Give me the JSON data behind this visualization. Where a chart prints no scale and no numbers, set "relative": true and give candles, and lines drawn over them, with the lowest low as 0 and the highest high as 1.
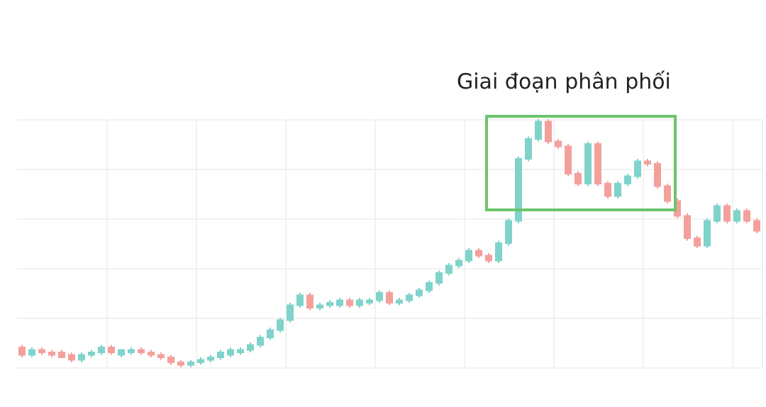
{
  "chart_data": {
    "type": "candlestick",
    "relative": true,
    "grid": true,
    "annotations": [
      "Giai đoạn phân phối"
    ],
    "categories": [
      null,
      null,
      null,
      null,
      null,
      null,
      null,
      null,
      null,
      null,
      null,
      null,
      null,
      null,
      null,
      null,
      null,
      null,
      null,
      null,
      null,
      null,
      null,
      null,
      null,
      null,
      null,
      null,
      null,
      null,
      null,
      null,
      null,
      null,
      null,
      null,
      null,
      null,
      null,
      null,
      null,
      null,
      null,
      null,
      null,
      null,
      null,
      null,
      null,
      null,
      null,
      null,
      null,
      null,
      null,
      null,
      null,
      null,
      null,
      null,
      null,
      null,
      null,
      null,
      null,
      null,
      null,
      null,
      null,
      null,
      null,
      null,
      null,
      null,
      null
    ],
    "ohlc": [
      [
        0.08,
        0.09,
        0.04,
        0.05
      ],
      [
        0.05,
        0.08,
        0.04,
        0.07
      ],
      [
        0.07,
        0.08,
        0.05,
        0.06
      ],
      [
        0.06,
        0.07,
        0.04,
        0.05
      ],
      [
        0.06,
        0.07,
        0.04,
        0.04
      ],
      [
        0.05,
        0.06,
        0.02,
        0.03
      ],
      [
        0.03,
        0.06,
        0.02,
        0.05
      ],
      [
        0.05,
        0.07,
        0.04,
        0.06
      ],
      [
        0.06,
        0.09,
        0.05,
        0.08
      ],
      [
        0.08,
        0.09,
        0.05,
        0.06
      ],
      [
        0.05,
        0.07,
        0.04,
        0.07
      ],
      [
        0.06,
        0.08,
        0.05,
        0.07
      ],
      [
        0.07,
        0.08,
        0.05,
        0.06
      ],
      [
        0.06,
        0.07,
        0.04,
        0.05
      ],
      [
        0.05,
        0.06,
        0.03,
        0.04
      ],
      [
        0.04,
        0.05,
        0.01,
        0.02
      ],
      [
        0.02,
        0.03,
        0,
        0.01
      ],
      [
        0.01,
        0.03,
        0,
        0.02
      ],
      [
        0.02,
        0.04,
        0.01,
        0.03
      ],
      [
        0.03,
        0.05,
        0.02,
        0.04
      ],
      [
        0.04,
        0.07,
        0.03,
        0.06
      ],
      [
        0.05,
        0.08,
        0.04,
        0.07
      ],
      [
        0.06,
        0.08,
        0.05,
        0.07
      ],
      [
        0.07,
        0.1,
        0.06,
        0.09
      ],
      [
        0.09,
        0.13,
        0.08,
        0.12
      ],
      [
        0.12,
        0.16,
        0.11,
        0.15
      ],
      [
        0.15,
        0.2,
        0.14,
        0.19
      ],
      [
        0.19,
        0.26,
        0.18,
        0.25
      ],
      [
        0.25,
        0.3,
        0.24,
        0.29
      ],
      [
        0.29,
        0.3,
        0.23,
        0.24
      ],
      [
        0.24,
        0.26,
        0.23,
        0.25
      ],
      [
        0.25,
        0.27,
        0.24,
        0.26
      ],
      [
        0.25,
        0.28,
        0.24,
        0.27
      ],
      [
        0.27,
        0.28,
        0.24,
        0.25
      ],
      [
        0.25,
        0.28,
        0.24,
        0.27
      ],
      [
        0.26,
        0.28,
        0.25,
        0.27
      ],
      [
        0.27,
        0.31,
        0.26,
        0.3
      ],
      [
        0.3,
        0.31,
        0.25,
        0.26
      ],
      [
        0.26,
        0.28,
        0.25,
        0.27
      ],
      [
        0.27,
        0.3,
        0.26,
        0.29
      ],
      [
        0.29,
        0.32,
        0.28,
        0.31
      ],
      [
        0.31,
        0.35,
        0.3,
        0.34
      ],
      [
        0.34,
        0.39,
        0.33,
        0.38
      ],
      [
        0.38,
        0.42,
        0.37,
        0.41
      ],
      [
        0.41,
        0.44,
        0.4,
        0.43
      ],
      [
        0.43,
        0.48,
        0.42,
        0.47
      ],
      [
        0.47,
        0.48,
        0.44,
        0.45
      ],
      [
        0.45,
        0.46,
        0.42,
        0.43
      ],
      [
        0.43,
        0.51,
        0.42,
        0.5
      ],
      [
        0.5,
        0.6,
        0.49,
        0.59
      ],
      [
        0.59,
        0.85,
        0.58,
        0.84
      ],
      [
        0.84,
        0.93,
        0.83,
        0.92
      ],
      [
        0.92,
        1,
        0.91,
        0.99
      ],
      [
        0.99,
        1,
        0.9,
        0.91
      ],
      [
        0.91,
        0.92,
        0.88,
        0.89
      ],
      [
        0.89,
        0.9,
        0.77,
        0.78
      ],
      [
        0.78,
        0.79,
        0.73,
        0.74
      ],
      [
        0.74,
        0.91,
        0.73,
        0.9
      ],
      [
        0.9,
        0.91,
        0.73,
        0.74
      ],
      [
        0.74,
        0.75,
        0.68,
        0.69
      ],
      [
        0.69,
        0.75,
        0.68,
        0.74
      ],
      [
        0.74,
        0.78,
        0.73,
        0.77
      ],
      [
        0.77,
        0.84,
        0.76,
        0.83
      ],
      [
        0.83,
        0.84,
        0.81,
        0.82
      ],
      [
        0.82,
        0.83,
        0.72,
        0.73
      ],
      [
        0.73,
        0.74,
        0.66,
        0.67
      ],
      [
        0.67,
        0.68,
        0.6,
        0.61
      ],
      [
        0.61,
        0.62,
        0.51,
        0.52
      ],
      [
        0.52,
        0.53,
        0.48,
        0.49
      ],
      [
        0.49,
        0.6,
        0.48,
        0.59
      ],
      [
        0.59,
        0.66,
        0.58,
        0.65
      ],
      [
        0.65,
        0.66,
        0.58,
        0.59
      ],
      [
        0.59,
        0.64,
        0.58,
        0.63
      ],
      [
        0.63,
        0.64,
        0.58,
        0.59
      ],
      [
        0.59,
        0.6,
        0.54,
        0.55
      ]
    ]
  }
}
